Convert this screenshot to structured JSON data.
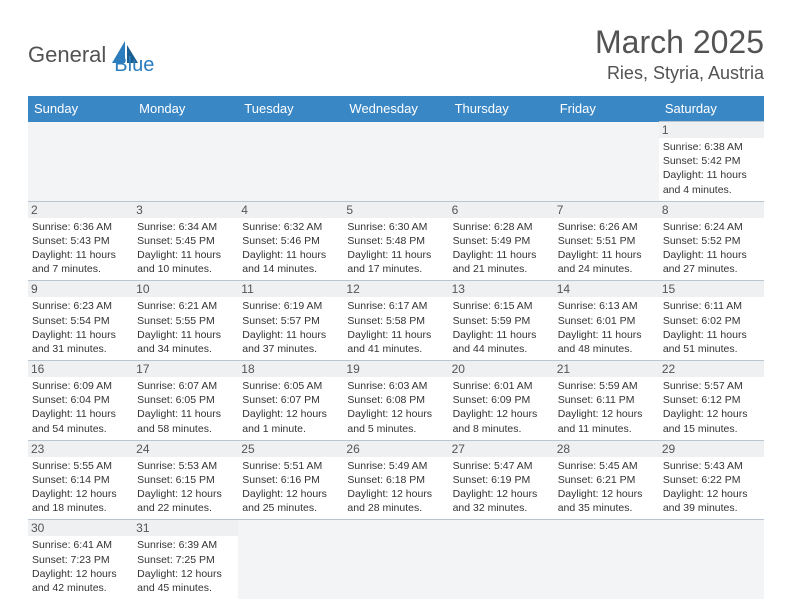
{
  "logo": {
    "part1": "General",
    "part2": "Blue"
  },
  "title": "March 2025",
  "location": "Ries, Styria, Austria",
  "colors": {
    "header_bg": "#3a87c6",
    "header_text": "#ffffff",
    "grid_border": "#b9c6d2",
    "daynum_bg": "#eef0f2",
    "empty_bg": "#f3f4f5",
    "logo_gray": "#535353",
    "logo_blue": "#2b7dbd"
  },
  "day_headers": [
    "Sunday",
    "Monday",
    "Tuesday",
    "Wednesday",
    "Thursday",
    "Friday",
    "Saturday"
  ],
  "weeks": [
    [
      null,
      null,
      null,
      null,
      null,
      null,
      {
        "n": "1",
        "sr": "Sunrise: 6:38 AM",
        "ss": "Sunset: 5:42 PM",
        "dl": "Daylight: 11 hours and 4 minutes."
      }
    ],
    [
      {
        "n": "2",
        "sr": "Sunrise: 6:36 AM",
        "ss": "Sunset: 5:43 PM",
        "dl": "Daylight: 11 hours and 7 minutes."
      },
      {
        "n": "3",
        "sr": "Sunrise: 6:34 AM",
        "ss": "Sunset: 5:45 PM",
        "dl": "Daylight: 11 hours and 10 minutes."
      },
      {
        "n": "4",
        "sr": "Sunrise: 6:32 AM",
        "ss": "Sunset: 5:46 PM",
        "dl": "Daylight: 11 hours and 14 minutes."
      },
      {
        "n": "5",
        "sr": "Sunrise: 6:30 AM",
        "ss": "Sunset: 5:48 PM",
        "dl": "Daylight: 11 hours and 17 minutes."
      },
      {
        "n": "6",
        "sr": "Sunrise: 6:28 AM",
        "ss": "Sunset: 5:49 PM",
        "dl": "Daylight: 11 hours and 21 minutes."
      },
      {
        "n": "7",
        "sr": "Sunrise: 6:26 AM",
        "ss": "Sunset: 5:51 PM",
        "dl": "Daylight: 11 hours and 24 minutes."
      },
      {
        "n": "8",
        "sr": "Sunrise: 6:24 AM",
        "ss": "Sunset: 5:52 PM",
        "dl": "Daylight: 11 hours and 27 minutes."
      }
    ],
    [
      {
        "n": "9",
        "sr": "Sunrise: 6:23 AM",
        "ss": "Sunset: 5:54 PM",
        "dl": "Daylight: 11 hours and 31 minutes."
      },
      {
        "n": "10",
        "sr": "Sunrise: 6:21 AM",
        "ss": "Sunset: 5:55 PM",
        "dl": "Daylight: 11 hours and 34 minutes."
      },
      {
        "n": "11",
        "sr": "Sunrise: 6:19 AM",
        "ss": "Sunset: 5:57 PM",
        "dl": "Daylight: 11 hours and 37 minutes."
      },
      {
        "n": "12",
        "sr": "Sunrise: 6:17 AM",
        "ss": "Sunset: 5:58 PM",
        "dl": "Daylight: 11 hours and 41 minutes."
      },
      {
        "n": "13",
        "sr": "Sunrise: 6:15 AM",
        "ss": "Sunset: 5:59 PM",
        "dl": "Daylight: 11 hours and 44 minutes."
      },
      {
        "n": "14",
        "sr": "Sunrise: 6:13 AM",
        "ss": "Sunset: 6:01 PM",
        "dl": "Daylight: 11 hours and 48 minutes."
      },
      {
        "n": "15",
        "sr": "Sunrise: 6:11 AM",
        "ss": "Sunset: 6:02 PM",
        "dl": "Daylight: 11 hours and 51 minutes."
      }
    ],
    [
      {
        "n": "16",
        "sr": "Sunrise: 6:09 AM",
        "ss": "Sunset: 6:04 PM",
        "dl": "Daylight: 11 hours and 54 minutes."
      },
      {
        "n": "17",
        "sr": "Sunrise: 6:07 AM",
        "ss": "Sunset: 6:05 PM",
        "dl": "Daylight: 11 hours and 58 minutes."
      },
      {
        "n": "18",
        "sr": "Sunrise: 6:05 AM",
        "ss": "Sunset: 6:07 PM",
        "dl": "Daylight: 12 hours and 1 minute."
      },
      {
        "n": "19",
        "sr": "Sunrise: 6:03 AM",
        "ss": "Sunset: 6:08 PM",
        "dl": "Daylight: 12 hours and 5 minutes."
      },
      {
        "n": "20",
        "sr": "Sunrise: 6:01 AM",
        "ss": "Sunset: 6:09 PM",
        "dl": "Daylight: 12 hours and 8 minutes."
      },
      {
        "n": "21",
        "sr": "Sunrise: 5:59 AM",
        "ss": "Sunset: 6:11 PM",
        "dl": "Daylight: 12 hours and 11 minutes."
      },
      {
        "n": "22",
        "sr": "Sunrise: 5:57 AM",
        "ss": "Sunset: 6:12 PM",
        "dl": "Daylight: 12 hours and 15 minutes."
      }
    ],
    [
      {
        "n": "23",
        "sr": "Sunrise: 5:55 AM",
        "ss": "Sunset: 6:14 PM",
        "dl": "Daylight: 12 hours and 18 minutes."
      },
      {
        "n": "24",
        "sr": "Sunrise: 5:53 AM",
        "ss": "Sunset: 6:15 PM",
        "dl": "Daylight: 12 hours and 22 minutes."
      },
      {
        "n": "25",
        "sr": "Sunrise: 5:51 AM",
        "ss": "Sunset: 6:16 PM",
        "dl": "Daylight: 12 hours and 25 minutes."
      },
      {
        "n": "26",
        "sr": "Sunrise: 5:49 AM",
        "ss": "Sunset: 6:18 PM",
        "dl": "Daylight: 12 hours and 28 minutes."
      },
      {
        "n": "27",
        "sr": "Sunrise: 5:47 AM",
        "ss": "Sunset: 6:19 PM",
        "dl": "Daylight: 12 hours and 32 minutes."
      },
      {
        "n": "28",
        "sr": "Sunrise: 5:45 AM",
        "ss": "Sunset: 6:21 PM",
        "dl": "Daylight: 12 hours and 35 minutes."
      },
      {
        "n": "29",
        "sr": "Sunrise: 5:43 AM",
        "ss": "Sunset: 6:22 PM",
        "dl": "Daylight: 12 hours and 39 minutes."
      }
    ],
    [
      {
        "n": "30",
        "sr": "Sunrise: 6:41 AM",
        "ss": "Sunset: 7:23 PM",
        "dl": "Daylight: 12 hours and 42 minutes."
      },
      {
        "n": "31",
        "sr": "Sunrise: 6:39 AM",
        "ss": "Sunset: 7:25 PM",
        "dl": "Daylight: 12 hours and 45 minutes."
      },
      null,
      null,
      null,
      null,
      null
    ]
  ]
}
